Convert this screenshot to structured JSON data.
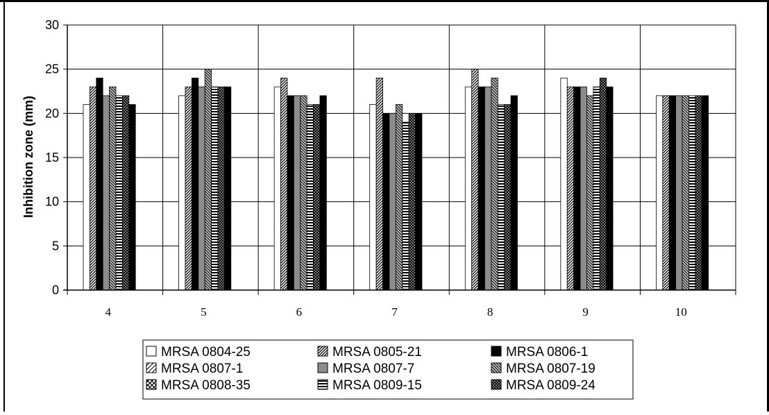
{
  "chart_data": {
    "type": "bar",
    "title": "",
    "xlabel": "",
    "ylabel": "Inhibition zone (mm)",
    "ylim": [
      0,
      30
    ],
    "yticks": [
      0,
      5,
      10,
      15,
      20,
      25,
      30
    ],
    "grid": true,
    "legend_position": "bottom",
    "categories": [
      "4",
      "5",
      "6",
      "7",
      "8",
      "9",
      "10"
    ],
    "series": [
      {
        "name": "MRSA 0804-25",
        "pattern": "white",
        "values": [
          21,
          22,
          23,
          21,
          23,
          24,
          22
        ]
      },
      {
        "name": "MRSA 0805-21",
        "pattern": "diag-dense",
        "values": [
          23,
          23,
          24,
          24,
          25,
          23,
          22
        ]
      },
      {
        "name": "MRSA 0806-1",
        "pattern": "solid-black",
        "values": [
          24,
          24,
          22,
          20,
          23,
          23,
          22
        ]
      },
      {
        "name": "MRSA 0807-1",
        "pattern": "diag-light",
        "values": [
          null,
          null,
          null,
          null,
          null,
          null,
          null
        ]
      },
      {
        "name": "MRSA 0807-7",
        "pattern": "gray",
        "values": [
          22,
          23,
          22,
          20,
          23,
          23,
          22
        ]
      },
      {
        "name": "MRSA 0807-19",
        "pattern": "diag-gray",
        "values": [
          23,
          25,
          22,
          21,
          24,
          22,
          22
        ]
      },
      {
        "name": "MRSA 0808-35",
        "pattern": "cross",
        "values": [
          null,
          null,
          null,
          null,
          null,
          null,
          null
        ]
      },
      {
        "name": "MRSA 0809-15",
        "pattern": "horizontal",
        "values": [
          22,
          23,
          21,
          19,
          21,
          23,
          22
        ]
      },
      {
        "name": "MRSA 0809-24",
        "pattern": "checker",
        "values": [
          22,
          23,
          21,
          20,
          21,
          24,
          22
        ]
      },
      {
        "name": "",
        "pattern": "solid-black",
        "values": [
          21,
          23,
          22,
          20,
          22,
          23,
          22
        ]
      }
    ]
  }
}
